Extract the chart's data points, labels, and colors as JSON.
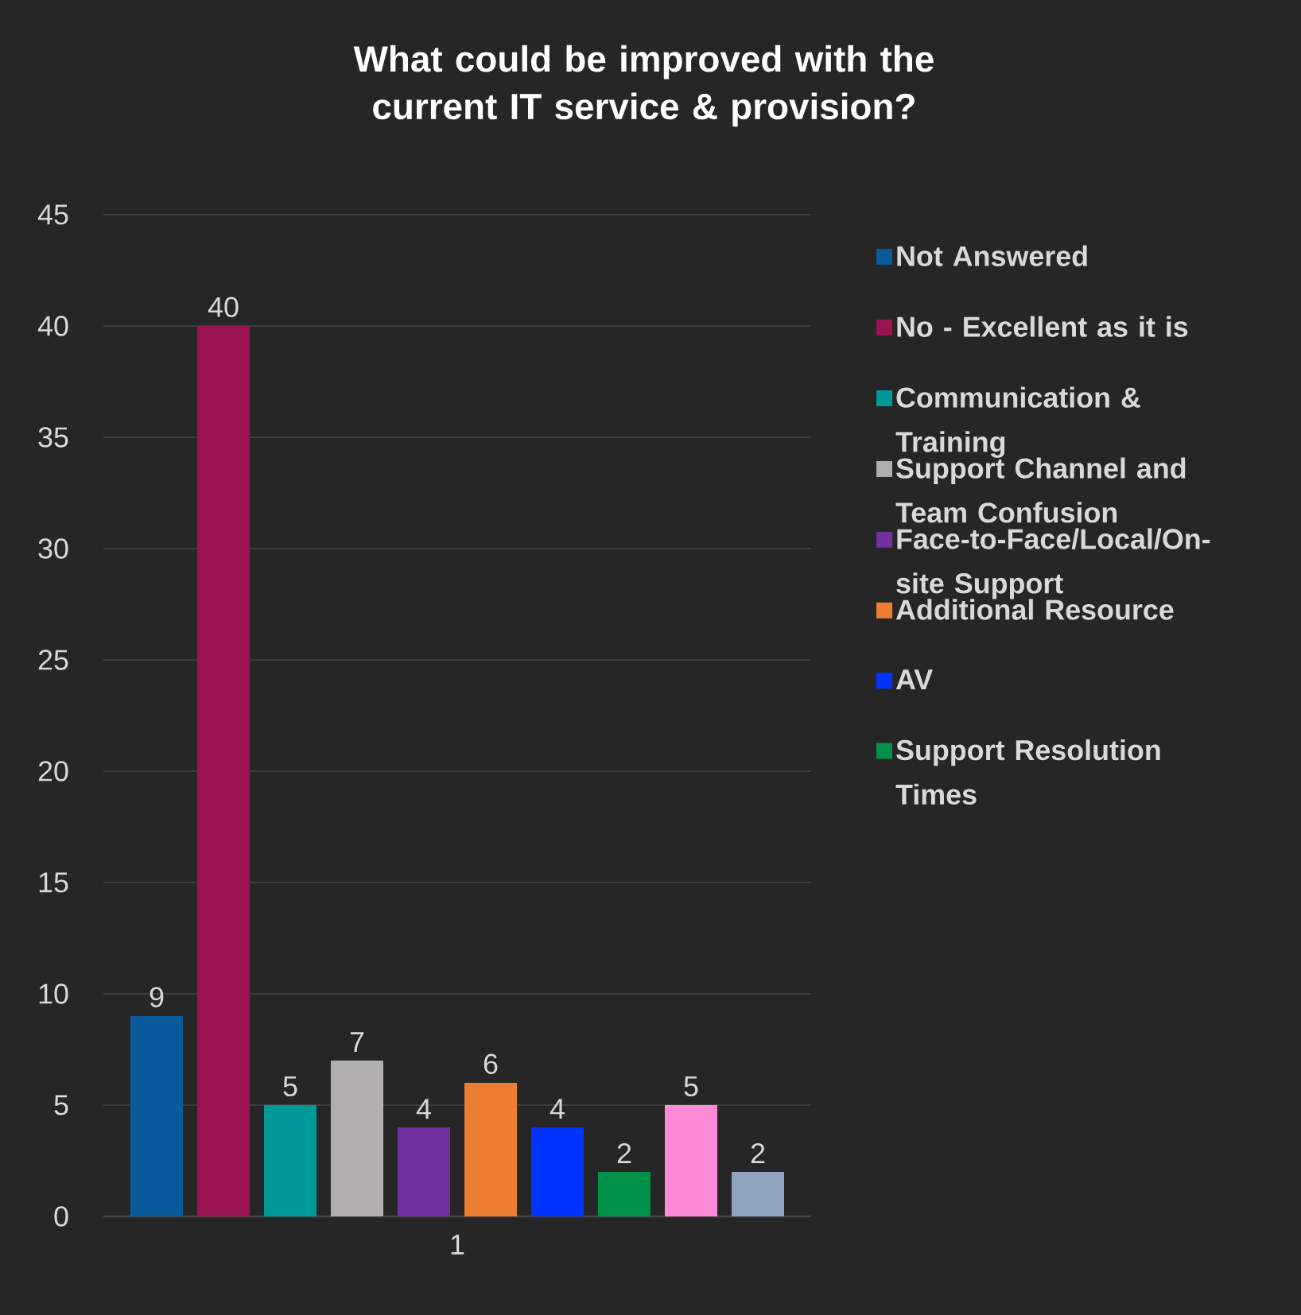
{
  "chart_data": {
    "type": "bar",
    "title": "What could be improved with the current IT service & provision?",
    "categories": [
      "1"
    ],
    "series": [
      {
        "name": "Not Answered",
        "color": "#0a5a9c",
        "values": [
          9
        ]
      },
      {
        "name": "No - Excellent as it is",
        "color": "#9b1452",
        "values": [
          40
        ]
      },
      {
        "name": "Communication & Training",
        "color": "#00999a",
        "values": [
          5
        ]
      },
      {
        "name": "Support Channel and Team Confusion",
        "color": "#b1aeae",
        "values": [
          7
        ]
      },
      {
        "name": "Face-to-Face/Local/On-site Support",
        "color": "#7030a0",
        "values": [
          4
        ]
      },
      {
        "name": "Additional Resource",
        "color": "#ed7d31",
        "values": [
          6
        ]
      },
      {
        "name": "AV",
        "color": "#0033ff",
        "values": [
          4
        ]
      },
      {
        "name": "Support Resolution Times",
        "color": "#00924a",
        "values": [
          2
        ]
      },
      {
        "color": "#ff8ad8",
        "values": [
          5
        ]
      },
      {
        "color": "#8fa3bf",
        "values": [
          2
        ]
      }
    ],
    "ylim": [
      0,
      45
    ],
    "yticks": [
      0,
      5,
      10,
      15,
      20,
      25,
      30,
      35,
      40,
      45
    ],
    "grid": "y",
    "legend": "right",
    "data_labels": true
  }
}
